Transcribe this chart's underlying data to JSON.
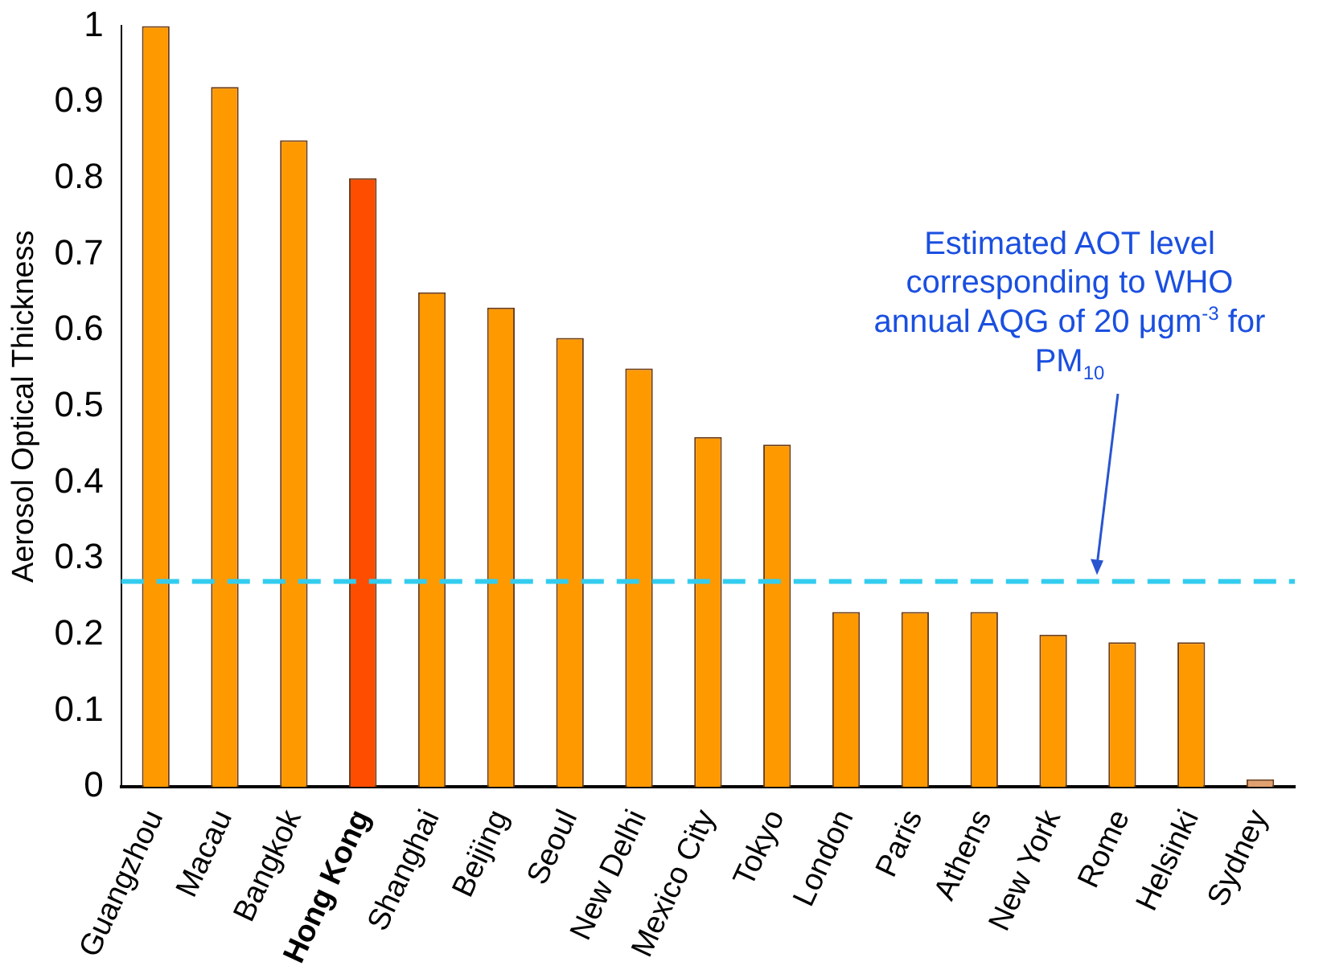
{
  "chart_data": {
    "type": "bar",
    "ylabel": "Aerosol Optical Thickness",
    "categories": [
      "Guangzhou",
      "Macau",
      "Bangkok",
      "Hong Kong",
      "Shanghai",
      "Beijing",
      "Seoul",
      "New Delhi",
      "Mexico City",
      "Tokyo",
      "London",
      "Paris",
      "Athens",
      "New York",
      "Rome",
      "Helsinki",
      "Sydney"
    ],
    "values": [
      1.0,
      0.92,
      0.85,
      0.8,
      0.65,
      0.63,
      0.59,
      0.55,
      0.46,
      0.45,
      0.23,
      0.23,
      0.23,
      0.2,
      0.19,
      0.19,
      0.01
    ],
    "colors": [
      "#ff9900",
      "#ff9900",
      "#ff9900",
      "#ff4d00",
      "#ff9900",
      "#ff9900",
      "#ff9900",
      "#ff9900",
      "#ff9900",
      "#ff9900",
      "#ff9900",
      "#ff9900",
      "#ff9900",
      "#ff9900",
      "#ff9900",
      "#ff9900",
      "#e0a070"
    ],
    "ylim": [
      0,
      1
    ],
    "yticks": [
      0,
      0.1,
      0.2,
      0.3,
      0.4,
      0.5,
      0.6,
      0.7,
      0.8,
      0.9,
      1
    ],
    "ref_lines": [
      {
        "axis": "y",
        "value": 0.27,
        "label": "Estimated AOT level corresponding to WHO annual AQG of 20 μgm$^{-3}$ for PM$_{10}$",
        "color": "#33ccee",
        "line_style": "dashed"
      }
    ]
  }
}
